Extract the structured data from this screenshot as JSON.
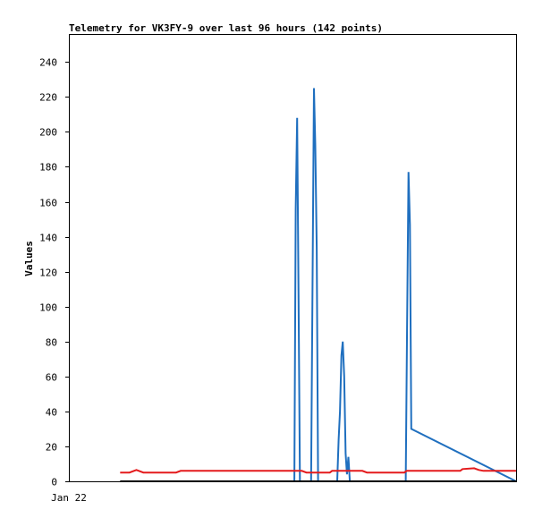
{
  "chart_data": {
    "type": "line",
    "title": "Telemetry for VK3FY-9 over last 96 hours (142 points)",
    "xlabel": "",
    "ylabel": "Values",
    "ylim": [
      0,
      256
    ],
    "yticks": [
      0,
      20,
      40,
      60,
      80,
      100,
      120,
      140,
      160,
      180,
      200,
      220,
      240
    ],
    "xlim": [
      0,
      96
    ],
    "xticks": [
      {
        "x": 0,
        "label": "Jan 22"
      }
    ],
    "grid": false,
    "legend": "none",
    "series": [
      {
        "color": "#1f6fbf",
        "x": [
          29.3,
          48.4,
          48.7,
          49.0,
          49.3,
          49.6,
          49.9,
          52.0,
          52.3,
          52.6,
          52.9,
          53.2,
          53.5,
          57.6,
          57.9,
          58.2,
          58.5,
          58.8,
          59.1,
          59.4,
          59.7,
          60.0,
          60.3,
          60.6,
          72.3,
          72.6,
          72.9,
          73.2,
          73.5,
          96.0
        ],
        "y": [
          0,
          0,
          156,
          208,
          104,
          0,
          0,
          0,
          112,
          225,
          192,
          133,
          0,
          0,
          24,
          40,
          72,
          80,
          60,
          16,
          4,
          14,
          0,
          0,
          0,
          88,
          177,
          147,
          30,
          0
        ]
      },
      {
        "color": "#e41a1c",
        "x": [
          11.0,
          13.0,
          14.5,
          16.0,
          23.0,
          24.0,
          50.0,
          51.0,
          56.0,
          56.5,
          63.0,
          64.0,
          65.5,
          66.0,
          72.0,
          72.5,
          84.0,
          84.5,
          87.0,
          88.0,
          89.0,
          96.0
        ],
        "y": [
          5.0,
          5.0,
          6.5,
          5.0,
          5.0,
          6.0,
          6.0,
          5.0,
          5.0,
          6.0,
          6.0,
          5.0,
          5.0,
          5.0,
          5.0,
          6.0,
          6.0,
          7.0,
          7.5,
          6.5,
          6.0,
          6.0
        ]
      },
      {
        "color": "#000000",
        "x": [
          11.0,
          96.0
        ],
        "y": [
          0,
          0
        ]
      }
    ]
  }
}
